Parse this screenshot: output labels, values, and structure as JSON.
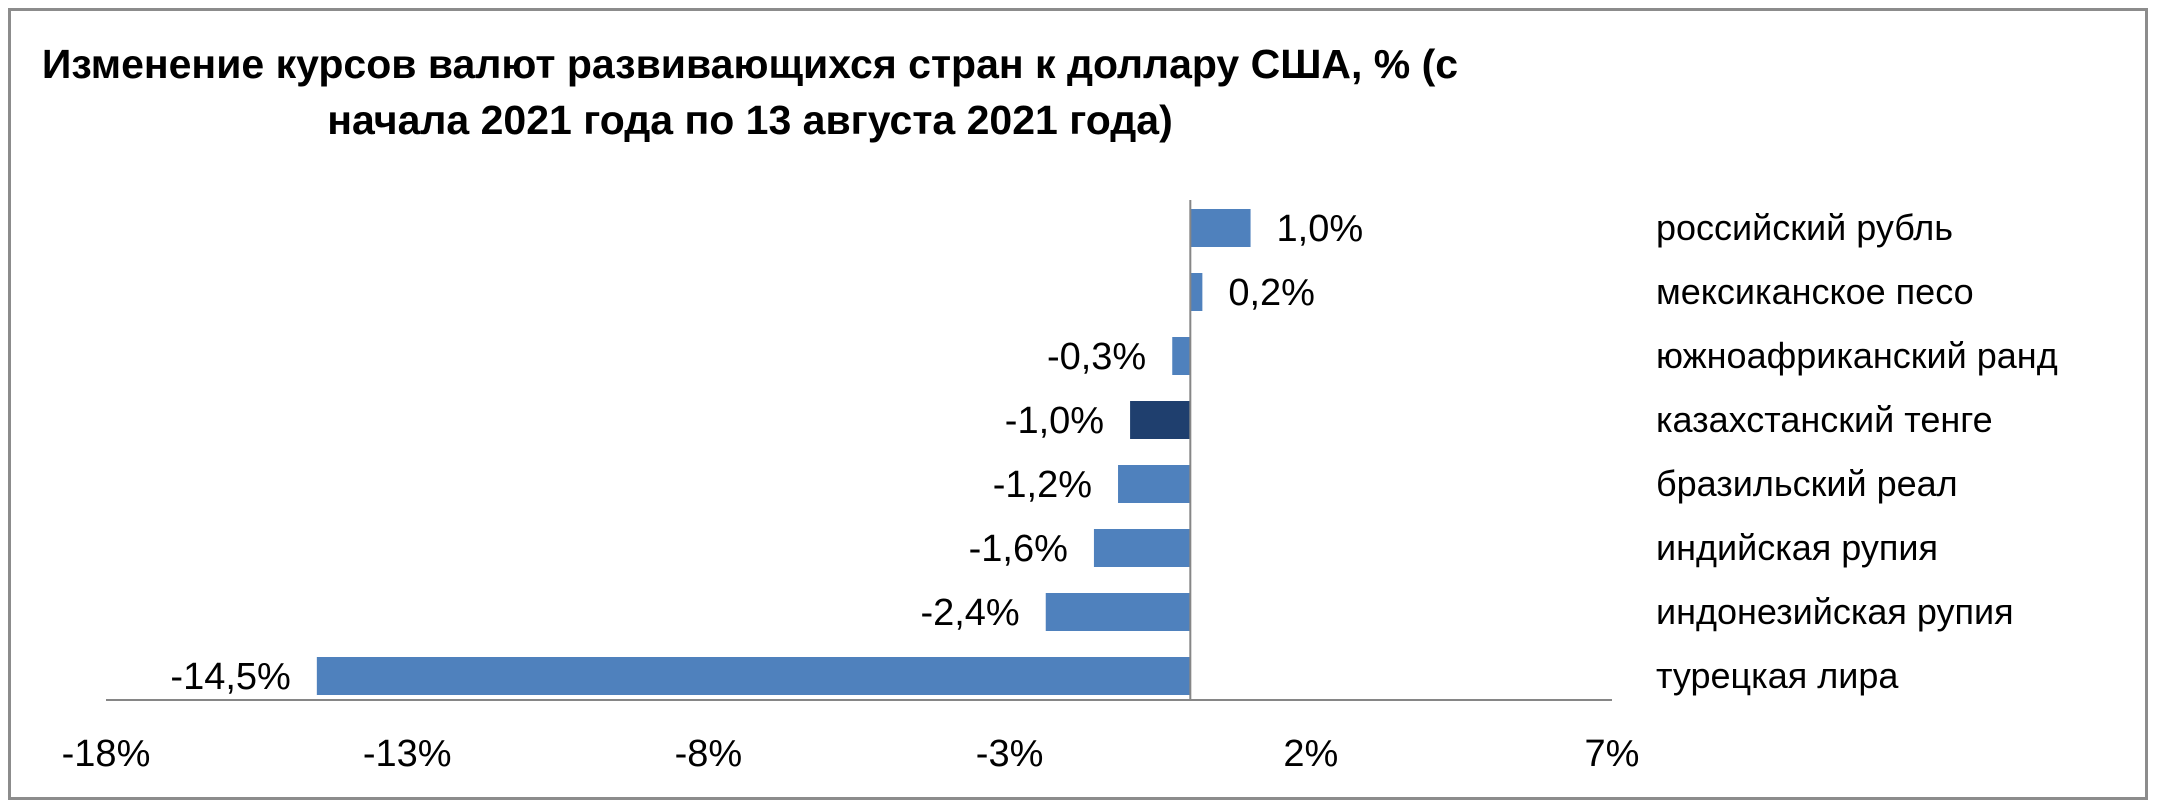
{
  "chart_data": {
    "type": "bar",
    "orientation": "horizontal",
    "title": "Изменение курсов валют развивающихся стран  к доллару США,  % (с начала 2021 года по 13 августа  2021 года)",
    "title_lines": [
      "Изменение курсов валют развивающихся стран  к доллару США,  % (с",
      "начала 2021 года по 13 августа  2021 года)"
    ],
    "categories": [
      "российский рубль",
      "мексиканское песо",
      "южноафриканский  ранд",
      "казахстанский тенге",
      "бразильский  реал",
      "индийская рупия",
      "индонезийская  рупия",
      "турецкая лира"
    ],
    "values": [
      1.0,
      0.2,
      -0.3,
      -1.0,
      -1.2,
      -1.6,
      -2.4,
      -14.5
    ],
    "data_labels": [
      "1,0%",
      "0,2%",
      "-0,3%",
      "-1,0%",
      "-1,2%",
      "-1,6%",
      "-2,4%",
      "-14,5%"
    ],
    "xlim": [
      -18,
      7
    ],
    "x_ticks": [
      -18,
      -13,
      -8,
      -3,
      2,
      7
    ],
    "x_tick_labels": [
      "-18%",
      "-13%",
      "-8%",
      "-3%",
      "2%",
      "7%"
    ],
    "colors": {
      "bar": "#4f81bd",
      "highlight": "#1f3f6e",
      "axis": "#868686"
    },
    "highlight_category": "казахстанский тенге",
    "legend": "none",
    "grid": false
  }
}
